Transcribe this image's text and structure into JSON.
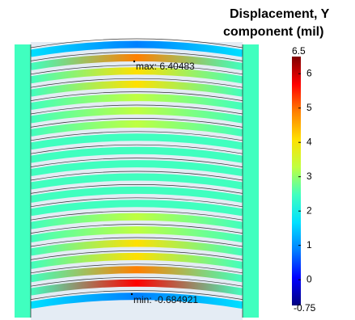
{
  "chart_data": {
    "type": "colormap",
    "title": [
      "Displacement, Y",
      "component (mil)"
    ],
    "clim": [
      -0.75,
      6.5
    ],
    "cticks": [
      0,
      1,
      2,
      3,
      4,
      5,
      6
    ],
    "colormap": [
      "#00007f",
      "#0000ff",
      "#0080ff",
      "#00e0ff",
      "#40ffbf",
      "#bfff40",
      "#ffe000",
      "#ff8000",
      "#ff0000",
      "#7f0000"
    ],
    "annotations": [
      "max: 6.40483",
      "min: -0.684921"
    ]
  }
}
